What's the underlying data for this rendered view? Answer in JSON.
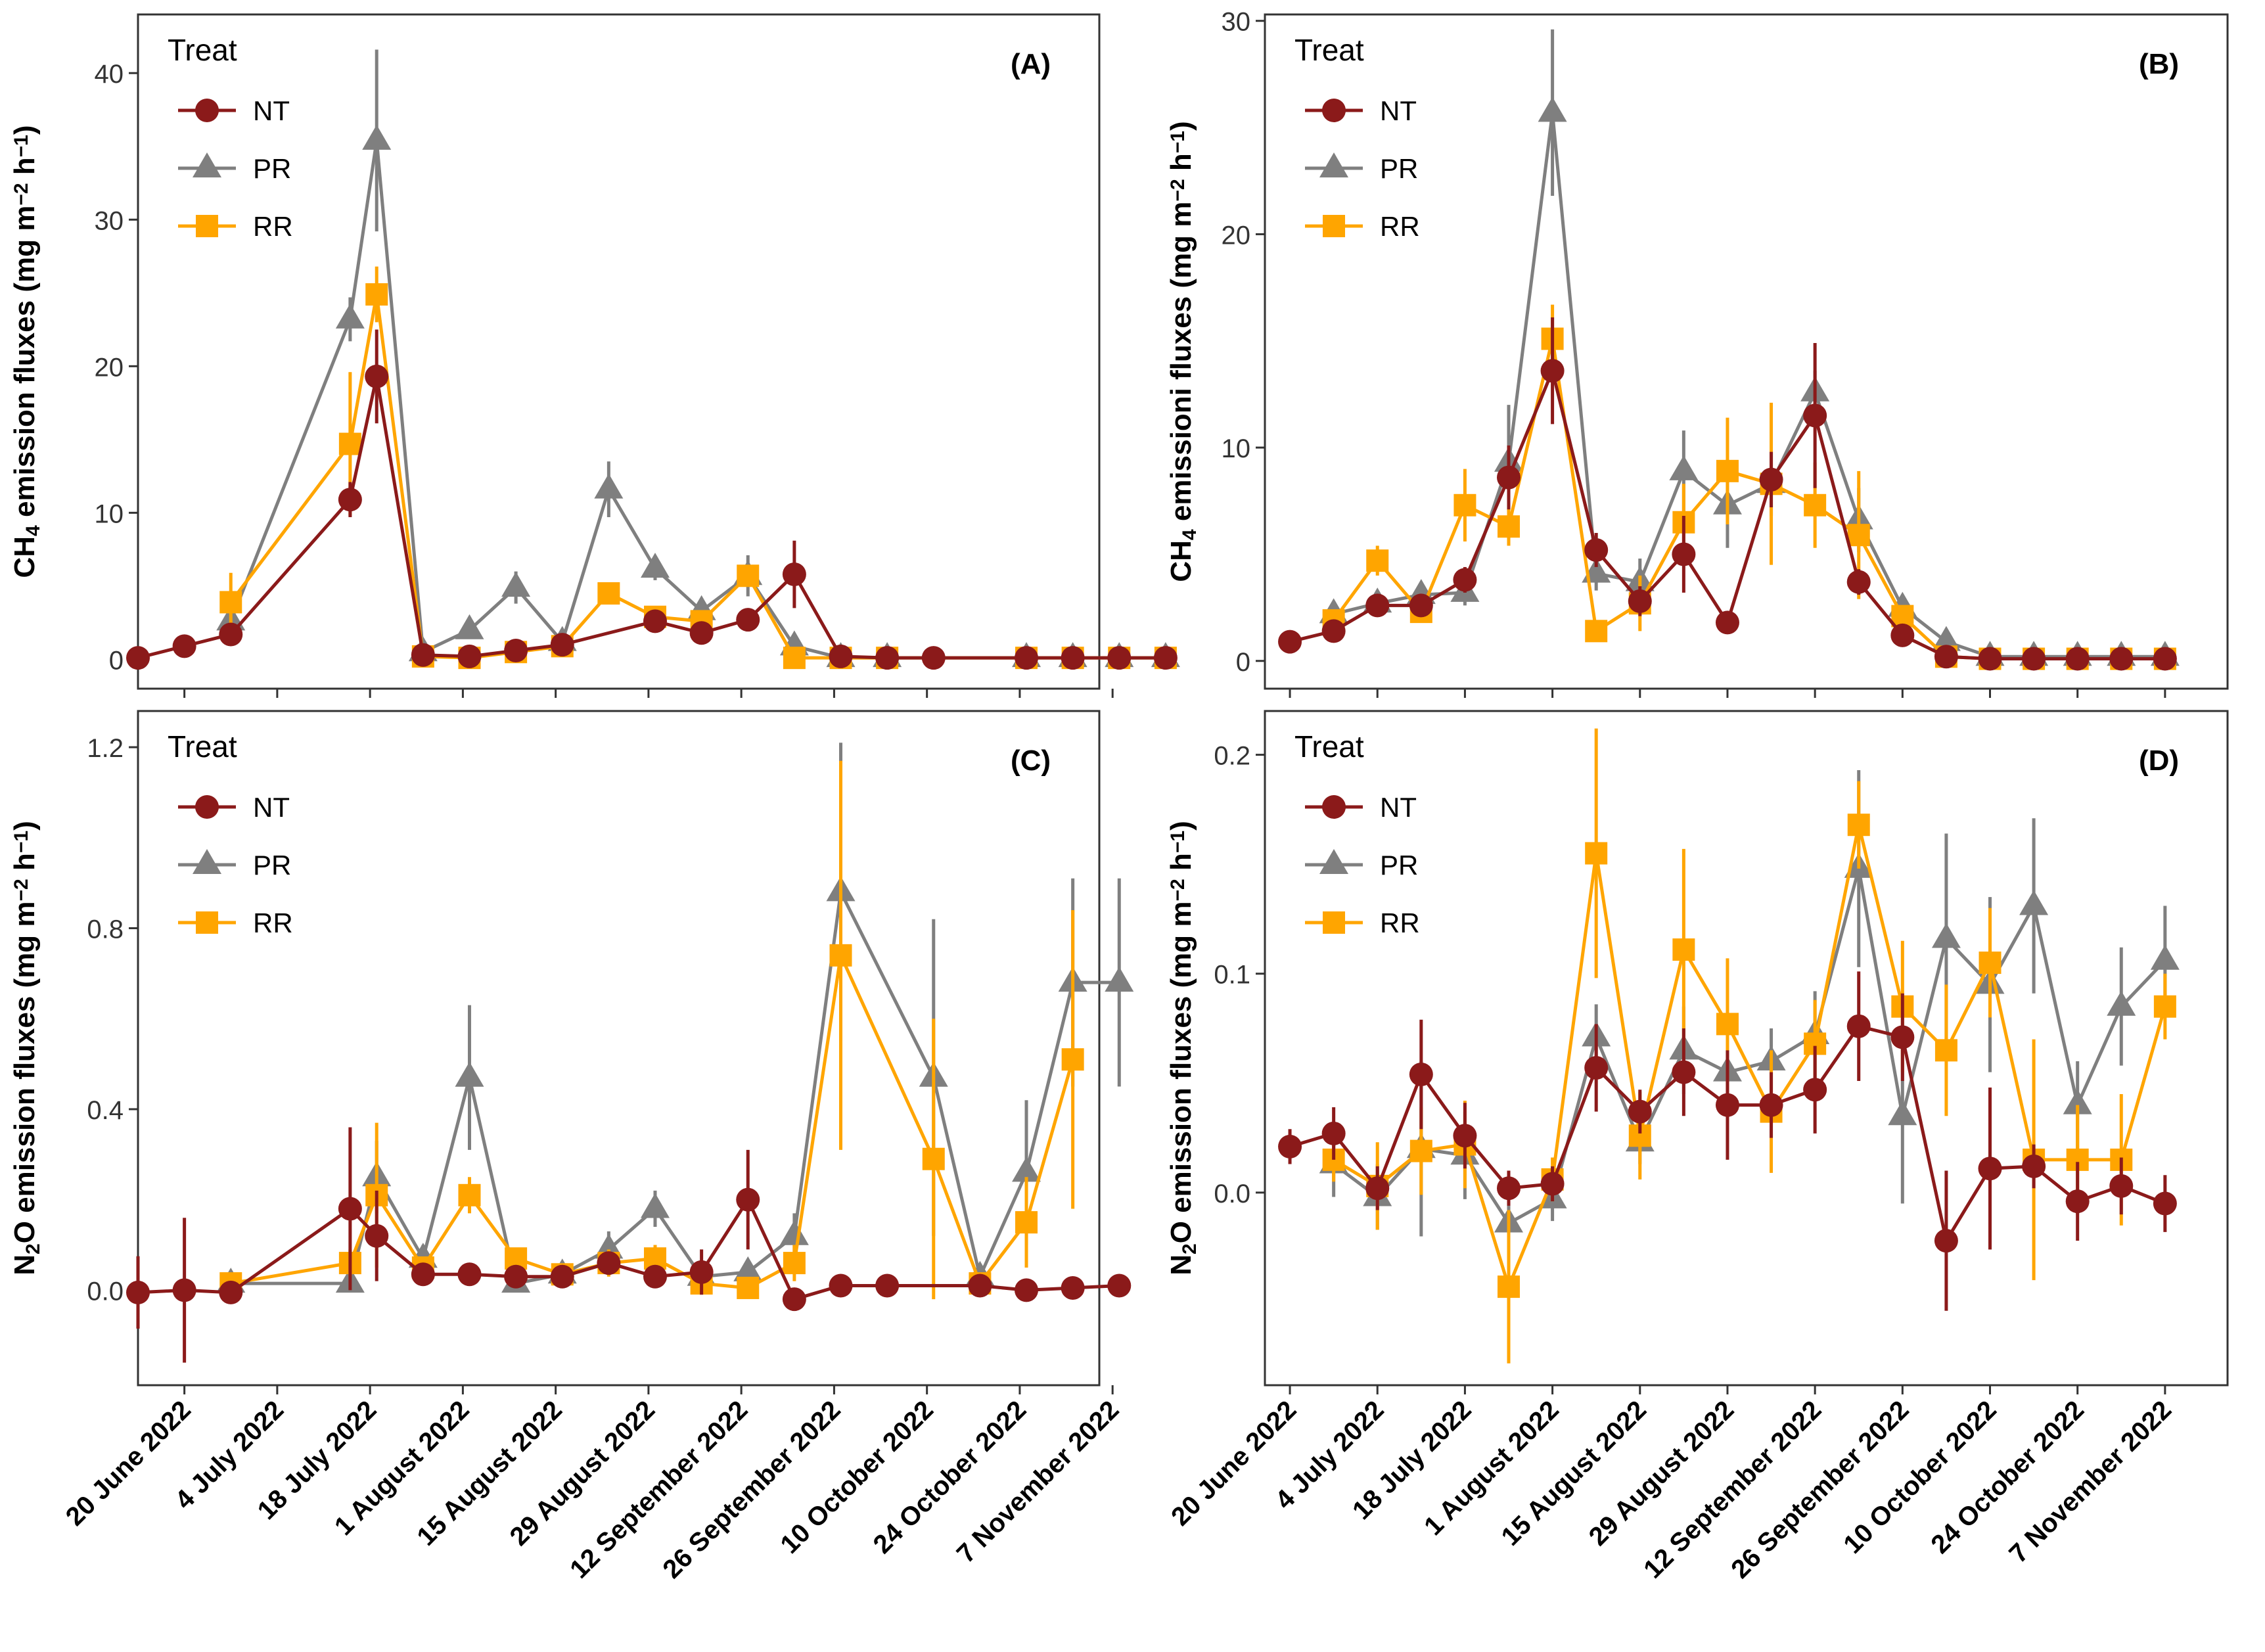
{
  "colors": {
    "NT": "#8B1A1A",
    "PR": "#7F7F7F",
    "RR": "#FFA500"
  },
  "legend": {
    "title": "Treat",
    "entries": [
      {
        "key": "NT",
        "label": "NT"
      },
      {
        "key": "PR",
        "label": "PR"
      },
      {
        "key": "RR",
        "label": "RR"
      }
    ]
  },
  "chart_data": [
    {
      "panel": "A",
      "tag": "(A)",
      "type": "line",
      "ylabel_main": "CH",
      "ylabel_sub": "4",
      "ylabel_rest": " emission fluxes  (mg m",
      "ylabel_sup1": "−2",
      "ylabel_mid": " h",
      "ylabel_sup2": "−1",
      "ylabel_end": ")",
      "xlim": [
        0,
        145
      ],
      "ylim": [
        -2,
        44
      ],
      "yticks": [
        0,
        10,
        20,
        30,
        40
      ],
      "xticks": [
        7,
        21,
        35,
        49,
        63,
        77,
        91,
        105,
        119,
        133,
        147
      ],
      "xtick_labels": [
        "20 June 2022",
        "4 July 2022",
        "18 July 2022",
        "1 August 2022",
        "15 August 2022",
        "29 August 2022",
        "12 September 2022",
        "26 September 2022",
        "10 October 2022",
        "24 October 2022",
        "7 November 2022"
      ],
      "series": [
        {
          "name": "NT",
          "marker": "circle",
          "x": [
            0,
            7,
            14,
            32,
            36,
            43,
            50,
            57,
            64,
            78,
            85,
            92,
            99,
            106,
            113,
            120,
            134,
            141,
            148,
            155
          ],
          "y": [
            0.1,
            0.9,
            1.7,
            10.9,
            19.3,
            0.3,
            0.2,
            0.6,
            1.0,
            2.6,
            1.8,
            2.7,
            5.8,
            0.2,
            0.1,
            0.1,
            0.1,
            0.1,
            0.1,
            0.1
          ],
          "err": [
            0,
            0,
            0.3,
            1.2,
            3.2,
            0.2,
            0.1,
            0.2,
            0.3,
            0.5,
            0.5,
            0.4,
            2.3,
            0.1,
            0.05,
            0.05,
            0.05,
            0.05,
            0.05,
            0.05
          ]
        },
        {
          "name": "PR",
          "marker": "triangle",
          "x": [
            14,
            32,
            36,
            43,
            50,
            57,
            64,
            71,
            78,
            85,
            92,
            99,
            106,
            113,
            134,
            141,
            148,
            155
          ],
          "y": [
            2.6,
            23.2,
            35.4,
            0.5,
            2.0,
            4.9,
            1.2,
            11.6,
            6.2,
            3.3,
            5.7,
            0.9,
            0.1,
            0.1,
            0.1,
            0.1,
            0.1,
            0.1
          ],
          "err": [
            0.5,
            1.5,
            6.2,
            0.2,
            0.5,
            1.1,
            0.4,
            1.9,
            0.8,
            0.6,
            1.4,
            0.3,
            0.05,
            0.05,
            0.05,
            0.05,
            0.05,
            0.05
          ]
        },
        {
          "name": "RR",
          "marker": "square",
          "x": [
            14,
            32,
            36,
            43,
            50,
            57,
            64,
            71,
            78,
            85,
            92,
            99,
            106,
            113,
            134,
            141,
            148,
            155
          ],
          "y": [
            3.9,
            14.7,
            24.9,
            0.2,
            0.1,
            0.5,
            0.9,
            4.5,
            2.9,
            2.6,
            5.7,
            0.1,
            0.1,
            0.1,
            0.1,
            0.1,
            0.1,
            0.1
          ],
          "err": [
            2.0,
            4.9,
            1.9,
            0.2,
            0.1,
            0.3,
            0.3,
            0.5,
            0.6,
            0.5,
            0.6,
            0.05,
            0.05,
            0.05,
            0.05,
            0.05,
            0.05,
            0.05
          ]
        }
      ]
    },
    {
      "panel": "B",
      "tag": "(B)",
      "type": "line",
      "ylabel_main": "CH",
      "ylabel_sub": "4",
      "ylabel_rest": " emissioni fluxes  (mg m",
      "ylabel_sup1": "−2",
      "ylabel_mid": " h",
      "ylabel_sup2": "−1",
      "ylabel_end": ")",
      "xlim": [
        -4,
        150
      ],
      "ylim": [
        -1.3,
        30.3
      ],
      "yticks": [
        0,
        10,
        20,
        30
      ],
      "xticks": [
        0,
        14,
        28,
        42,
        56,
        70,
        84,
        98,
        112,
        126,
        140
      ],
      "xtick_labels": [
        "20 June 2022",
        "4 July 2022",
        "18 July 2022",
        "1 August 2022",
        "15 August 2022",
        "29 August 2022",
        "12 September 2022",
        "26 September 2022",
        "10 October 2022",
        "24 October 2022",
        "7 November 2022"
      ],
      "series": [
        {
          "name": "NT",
          "marker": "circle",
          "x": [
            0,
            7,
            14,
            21,
            28,
            35,
            42,
            49,
            56,
            63,
            70,
            77,
            84,
            91,
            98,
            105,
            112,
            119,
            126,
            133,
            140
          ],
          "y": [
            0.9,
            1.4,
            2.6,
            2.6,
            3.8,
            8.6,
            13.6,
            5.2,
            2.8,
            5.0,
            1.8,
            8.5,
            11.5,
            3.7,
            1.2,
            0.2,
            0.1,
            0.1,
            0.1,
            0.1,
            0.1
          ],
          "err": [
            0.1,
            0.3,
            0.4,
            0.4,
            0.6,
            1.5,
            2.5,
            0.8,
            0.7,
            1.8,
            0.5,
            1.3,
            3.4,
            0.6,
            0.3,
            0.1,
            0.05,
            0.05,
            0.05,
            0.05,
            0.05
          ]
        },
        {
          "name": "PR",
          "marker": "triangle",
          "x": [
            7,
            14,
            21,
            28,
            35,
            42,
            49,
            56,
            63,
            70,
            77,
            84,
            91,
            98,
            105,
            112,
            119,
            126,
            133,
            140
          ],
          "y": [
            2.2,
            2.7,
            3.1,
            3.2,
            9.3,
            25.7,
            4.1,
            3.7,
            8.9,
            7.3,
            8.3,
            12.6,
            6.6,
            2.5,
            0.9,
            0.2,
            0.2,
            0.2,
            0.2,
            0.2
          ],
          "err": [
            0.5,
            0.6,
            0.6,
            0.6,
            2.7,
            3.9,
            0.8,
            1.1,
            1.9,
            2.0,
            1.5,
            1.0,
            1.5,
            0.5,
            0.3,
            0.1,
            0.05,
            0.05,
            0.05,
            0.05
          ]
        },
        {
          "name": "RR",
          "marker": "square",
          "x": [
            7,
            14,
            21,
            28,
            35,
            42,
            49,
            56,
            63,
            70,
            77,
            84,
            91,
            98,
            105,
            112,
            119,
            126,
            133,
            140
          ],
          "y": [
            1.9,
            4.7,
            2.3,
            7.3,
            6.3,
            15.1,
            1.4,
            2.7,
            6.5,
            8.9,
            8.3,
            7.3,
            5.9,
            2.1,
            0.2,
            0.1,
            0.1,
            0.1,
            0.1,
            0.1
          ],
          "err": [
            0.5,
            0.7,
            0.5,
            1.7,
            0.9,
            1.6,
            0.3,
            1.3,
            1.8,
            2.5,
            3.8,
            2.0,
            3.0,
            0.5,
            0.1,
            0.05,
            0.05,
            0.05,
            0.05,
            0.05
          ]
        }
      ]
    },
    {
      "panel": "C",
      "tag": "(C)",
      "type": "line",
      "ylabel_main": "N",
      "ylabel_sub": "2",
      "ylabel_rest": "O emission fluxes  (mg m",
      "ylabel_sup1": "−2",
      "ylabel_mid": " h",
      "ylabel_sup2": "−1",
      "ylabel_end": ")",
      "xlim": [
        0,
        145
      ],
      "ylim": [
        -0.21,
        1.28
      ],
      "yticks": [
        0.0,
        0.4,
        0.8,
        1.2
      ],
      "ytick_labels": [
        "0.0",
        "0.4",
        "0.8",
        "1.2"
      ],
      "xticks": [
        7,
        21,
        35,
        49,
        63,
        77,
        91,
        105,
        119,
        133,
        147
      ],
      "xtick_labels": [
        "20 June 2022",
        "4 July 2022",
        "18 July 2022",
        "1 August 2022",
        "15 August 2022",
        "29 August 2022",
        "12 September 2022",
        "26 September 2022",
        "10 October 2022",
        "24 October 2022",
        "7 November 2022"
      ],
      "series": [
        {
          "name": "NT",
          "marker": "circle",
          "x": [
            0,
            7,
            14,
            32,
            36,
            43,
            50,
            57,
            64,
            71,
            78,
            85,
            92,
            99,
            106,
            113,
            127,
            134,
            141,
            148
          ],
          "y": [
            -0.005,
            0.0,
            -0.005,
            0.18,
            0.12,
            0.035,
            0.035,
            0.03,
            0.03,
            0.06,
            0.03,
            0.04,
            0.2,
            -0.02,
            0.01,
            0.01,
            0.01,
            0.0,
            0.005,
            0.01
          ],
          "err": [
            0.08,
            0.16,
            0.02,
            0.18,
            0.1,
            0.02,
            0.02,
            0.015,
            0.015,
            0.02,
            0.02,
            0.05,
            0.11,
            0.02,
            0.02,
            0.02,
            0.01,
            0.01,
            0.01,
            0.01
          ]
        },
        {
          "name": "PR",
          "marker": "triangle",
          "x": [
            14,
            32,
            36,
            43,
            50,
            57,
            64,
            71,
            78,
            85,
            92,
            99,
            106,
            120,
            127,
            134,
            141,
            148
          ],
          "y": [
            0.015,
            0.015,
            0.25,
            0.07,
            0.47,
            0.015,
            0.035,
            0.09,
            0.18,
            0.03,
            0.04,
            0.12,
            0.88,
            0.47,
            0.03,
            0.26,
            0.68,
            0.68
          ],
          "err": [
            0.01,
            0.01,
            0.08,
            0.03,
            0.16,
            0.01,
            0.01,
            0.04,
            0.04,
            0.02,
            0.02,
            0.05,
            0.33,
            0.35,
            0.02,
            0.16,
            0.23,
            0.23
          ]
        },
        {
          "name": "RR",
          "marker": "square",
          "x": [
            14,
            32,
            36,
            43,
            50,
            57,
            64,
            71,
            78,
            85,
            92,
            99,
            106,
            120,
            127,
            134,
            141
          ],
          "y": [
            0.015,
            0.06,
            0.21,
            0.05,
            0.21,
            0.07,
            0.035,
            0.06,
            0.07,
            0.015,
            0.005,
            0.06,
            0.74,
            0.29,
            0.015,
            0.15,
            0.51
          ],
          "err": [
            0.01,
            0.03,
            0.16,
            0.02,
            0.04,
            0.02,
            0.015,
            0.03,
            0.03,
            0.01,
            0.01,
            0.04,
            0.43,
            0.31,
            0.02,
            0.1,
            0.33
          ]
        }
      ]
    },
    {
      "panel": "D",
      "tag": "(D)",
      "type": "line",
      "ylabel_main": "N",
      "ylabel_sub": "2",
      "ylabel_rest": "O emission fluxes  (mg m",
      "ylabel_sup1": "−2",
      "ylabel_mid": " h",
      "ylabel_sup2": "−1",
      "ylabel_end": ")",
      "xlim": [
        -4,
        150
      ],
      "ylim": [
        -0.088,
        0.22
      ],
      "yticks": [
        0.0,
        0.1,
        0.2
      ],
      "ytick_labels": [
        "0.0",
        "0.1",
        "0.2"
      ],
      "xticks": [
        0,
        14,
        28,
        42,
        56,
        70,
        84,
        98,
        112,
        126,
        140
      ],
      "xtick_labels": [
        "20 June 2022",
        "4 July 2022",
        "18 July 2022",
        "1 August 2022",
        "15 August 2022",
        "29 August 2022",
        "12 September 2022",
        "26 September 2022",
        "10 October 2022",
        "24 October 2022",
        "7 November 2022"
      ],
      "series": [
        {
          "name": "NT",
          "marker": "circle",
          "x": [
            0,
            7,
            14,
            21,
            28,
            35,
            42,
            49,
            56,
            63,
            70,
            77,
            84,
            91,
            98,
            105,
            112,
            119,
            126,
            133,
            140
          ],
          "y": [
            0.021,
            0.027,
            0.002,
            0.054,
            0.026,
            0.002,
            0.004,
            0.057,
            0.037,
            0.055,
            0.04,
            0.04,
            0.047,
            0.076,
            0.071,
            -0.022,
            0.011,
            0.012,
            -0.004,
            0.003,
            -0.005
          ],
          "err": [
            0.008,
            0.012,
            0.01,
            0.025,
            0.015,
            0.008,
            0.008,
            0.02,
            0.01,
            0.02,
            0.025,
            0.015,
            0.02,
            0.025,
            0.02,
            0.032,
            0.037,
            0.01,
            0.018,
            0.013,
            0.013
          ]
        },
        {
          "name": "PR",
          "marker": "triangle",
          "x": [
            7,
            14,
            21,
            28,
            35,
            42,
            49,
            56,
            63,
            70,
            77,
            84,
            91,
            98,
            105,
            112,
            119,
            126,
            133,
            140
          ],
          "y": [
            0.013,
            -0.002,
            0.02,
            0.017,
            -0.014,
            -0.003,
            0.071,
            0.023,
            0.065,
            0.055,
            0.06,
            0.072,
            0.148,
            0.035,
            0.116,
            0.095,
            0.131,
            0.04,
            0.085,
            0.106
          ],
          "err": [
            0.015,
            0.015,
            0.04,
            0.02,
            0.02,
            0.01,
            0.015,
            0.01,
            0.02,
            0.01,
            0.015,
            0.02,
            0.045,
            0.04,
            0.048,
            0.04,
            0.04,
            0.02,
            0.027,
            0.025
          ]
        },
        {
          "name": "RR",
          "marker": "square",
          "x": [
            7,
            14,
            21,
            28,
            35,
            42,
            49,
            56,
            63,
            70,
            77,
            84,
            91,
            98,
            105,
            112,
            119,
            126,
            133,
            140
          ],
          "y": [
            0.015,
            0.003,
            0.019,
            0.022,
            -0.043,
            0.006,
            0.155,
            0.026,
            0.111,
            0.077,
            0.037,
            0.068,
            0.168,
            0.085,
            0.065,
            0.105,
            0.015,
            0.015,
            0.015,
            0.085
          ],
          "err": [
            0.01,
            0.02,
            0.02,
            0.02,
            0.035,
            0.01,
            0.057,
            0.02,
            0.046,
            0.03,
            0.028,
            0.02,
            0.02,
            0.03,
            0.03,
            0.025,
            0.055,
            0.025,
            0.03,
            0.015
          ]
        }
      ]
    }
  ]
}
